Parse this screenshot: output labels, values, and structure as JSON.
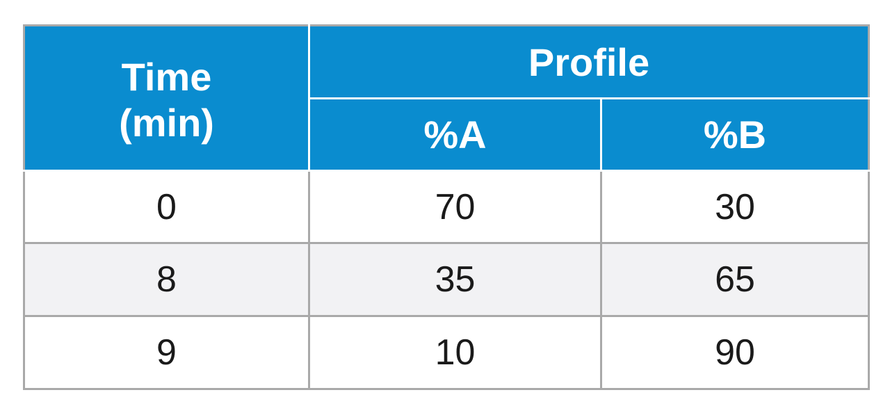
{
  "table": {
    "header": {
      "time_line1": "Time",
      "time_line2": "(min)",
      "profile": "Profile",
      "col_a": "%A",
      "col_b": "%B"
    },
    "rows": [
      {
        "time": "0",
        "a": "70",
        "b": "30"
      },
      {
        "time": "8",
        "a": "35",
        "b": "65"
      },
      {
        "time": "9",
        "a": "10",
        "b": "90"
      }
    ]
  },
  "colors": {
    "header_bg": "#0a8ccf",
    "header_text": "#ffffff",
    "stripe_bg": "#f2f2f4",
    "border": "#a9a9a9"
  }
}
